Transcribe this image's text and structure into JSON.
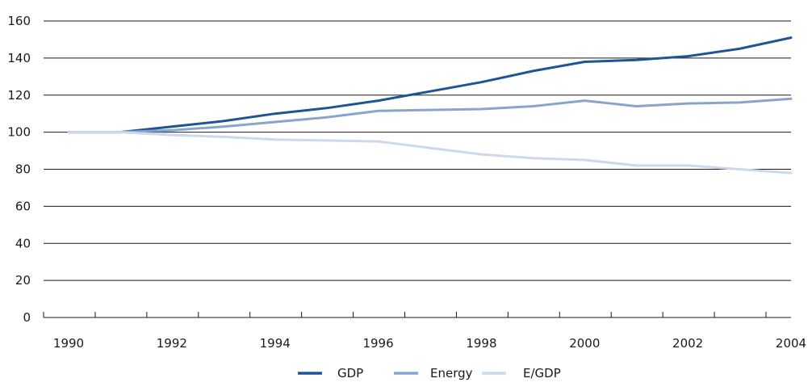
{
  "chart_data": {
    "type": "line",
    "title": "",
    "xlabel": "",
    "ylabel": "",
    "x": [
      1990,
      1991,
      1992,
      1993,
      1994,
      1995,
      1996,
      1997,
      1998,
      1999,
      2000,
      2001,
      2002,
      2003,
      2004
    ],
    "x_tick_labels": [
      "1990",
      "1992",
      "1994",
      "1996",
      "1998",
      "2000",
      "2002",
      "2004"
    ],
    "y_ticks": [
      0,
      20,
      40,
      60,
      80,
      100,
      120,
      140,
      160
    ],
    "ylim": [
      0,
      160
    ],
    "xlim": [
      1990,
      2004
    ],
    "grid": "horizontal",
    "legend_position": "bottom-center",
    "series": [
      {
        "name": "GDP",
        "color": "#1f5594",
        "values": [
          100,
          100,
          103,
          106,
          110,
          113,
          117,
          122,
          127,
          133,
          138,
          139,
          141,
          145,
          151
        ]
      },
      {
        "name": "Energy",
        "color": "#8aa5cc",
        "values": [
          100,
          100,
          101,
          103,
          105.5,
          108,
          111.5,
          112,
          112.5,
          114,
          117,
          114,
          115.5,
          116,
          118
        ]
      },
      {
        "name": "E/GDP",
        "color": "#ccd9ea",
        "values": [
          100,
          100,
          98.5,
          97.5,
          96,
          95.5,
          95,
          91.5,
          88,
          86,
          85,
          82,
          82,
          80,
          78
        ]
      }
    ]
  }
}
